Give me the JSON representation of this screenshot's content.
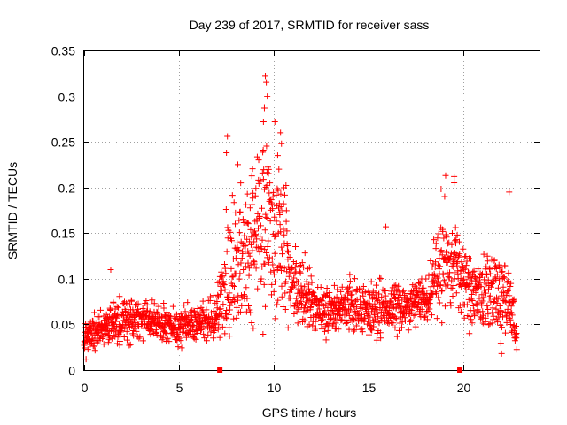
{
  "chart_data": {
    "type": "scatter",
    "title": "Day 239 of 2017, SRMTID for receiver sass",
    "xlabel": "GPS time / hours",
    "ylabel": "SRMTID / TECUs",
    "xlim": [
      0,
      24
    ],
    "ylim": [
      0,
      0.35
    ],
    "grid": true,
    "x_ticks": [
      0,
      5,
      10,
      15,
      20
    ],
    "x_tick_labels": [
      "0",
      "5",
      "10",
      "15",
      "20"
    ],
    "y_ticks": [
      0,
      0.05,
      0.1,
      0.15,
      0.2,
      0.25,
      0.3,
      0.35
    ],
    "y_tick_labels": [
      "0",
      "0.05",
      "0.1",
      "0.15",
      "0.2",
      "0.25",
      "0.3",
      "0.35"
    ],
    "marker": "+",
    "marker_color": "#ff0000",
    "gap_markers_x": [
      7.15,
      19.8
    ],
    "envelope": [
      {
        "t": 0.0,
        "base": 0.035,
        "spread": 0.025
      },
      {
        "t": 1.0,
        "base": 0.045,
        "spread": 0.03
      },
      {
        "t": 1.5,
        "base": 0.05,
        "spread": 0.035
      },
      {
        "t": 2.5,
        "base": 0.055,
        "spread": 0.035
      },
      {
        "t": 3.5,
        "base": 0.055,
        "spread": 0.03
      },
      {
        "t": 5.0,
        "base": 0.045,
        "spread": 0.03
      },
      {
        "t": 6.5,
        "base": 0.055,
        "spread": 0.03
      },
      {
        "t": 7.0,
        "base": 0.06,
        "spread": 0.03
      },
      {
        "t": 7.5,
        "base": 0.1,
        "spread": 0.12
      },
      {
        "t": 8.5,
        "base": 0.13,
        "spread": 0.1
      },
      {
        "t": 9.5,
        "base": 0.16,
        "spread": 0.14
      },
      {
        "t": 10.3,
        "base": 0.14,
        "spread": 0.11
      },
      {
        "t": 11.2,
        "base": 0.09,
        "spread": 0.06
      },
      {
        "t": 12.5,
        "base": 0.065,
        "spread": 0.035
      },
      {
        "t": 14.0,
        "base": 0.07,
        "spread": 0.04
      },
      {
        "t": 16.0,
        "base": 0.065,
        "spread": 0.04
      },
      {
        "t": 18.0,
        "base": 0.075,
        "spread": 0.035
      },
      {
        "t": 18.8,
        "base": 0.12,
        "spread": 0.08
      },
      {
        "t": 19.5,
        "base": 0.12,
        "spread": 0.08
      },
      {
        "t": 20.5,
        "base": 0.08,
        "spread": 0.05
      },
      {
        "t": 21.5,
        "base": 0.09,
        "spread": 0.06
      },
      {
        "t": 22.4,
        "base": 0.07,
        "spread": 0.06
      },
      {
        "t": 22.8,
        "base": 0.035,
        "spread": 0.02
      }
    ],
    "highlight_points": [
      {
        "x": 9.55,
        "y": 0.322
      },
      {
        "x": 9.6,
        "y": 0.315
      },
      {
        "x": 9.65,
        "y": 0.3
      },
      {
        "x": 9.5,
        "y": 0.287
      },
      {
        "x": 9.45,
        "y": 0.272
      },
      {
        "x": 10.05,
        "y": 0.272
      },
      {
        "x": 10.35,
        "y": 0.26
      },
      {
        "x": 7.55,
        "y": 0.256
      },
      {
        "x": 10.4,
        "y": 0.248
      },
      {
        "x": 7.5,
        "y": 0.238
      },
      {
        "x": 10.2,
        "y": 0.235
      },
      {
        "x": 8.1,
        "y": 0.225
      },
      {
        "x": 19.05,
        "y": 0.213
      },
      {
        "x": 19.5,
        "y": 0.212
      },
      {
        "x": 19.5,
        "y": 0.205
      },
      {
        "x": 22.4,
        "y": 0.195
      },
      {
        "x": 19.0,
        "y": 0.19
      },
      {
        "x": 15.9,
        "y": 0.157
      },
      {
        "x": 1.4,
        "y": 0.11
      },
      {
        "x": 0.1,
        "y": 0.012
      },
      {
        "x": 22.0,
        "y": 0.018
      },
      {
        "x": 20.3,
        "y": 0.04
      }
    ]
  }
}
